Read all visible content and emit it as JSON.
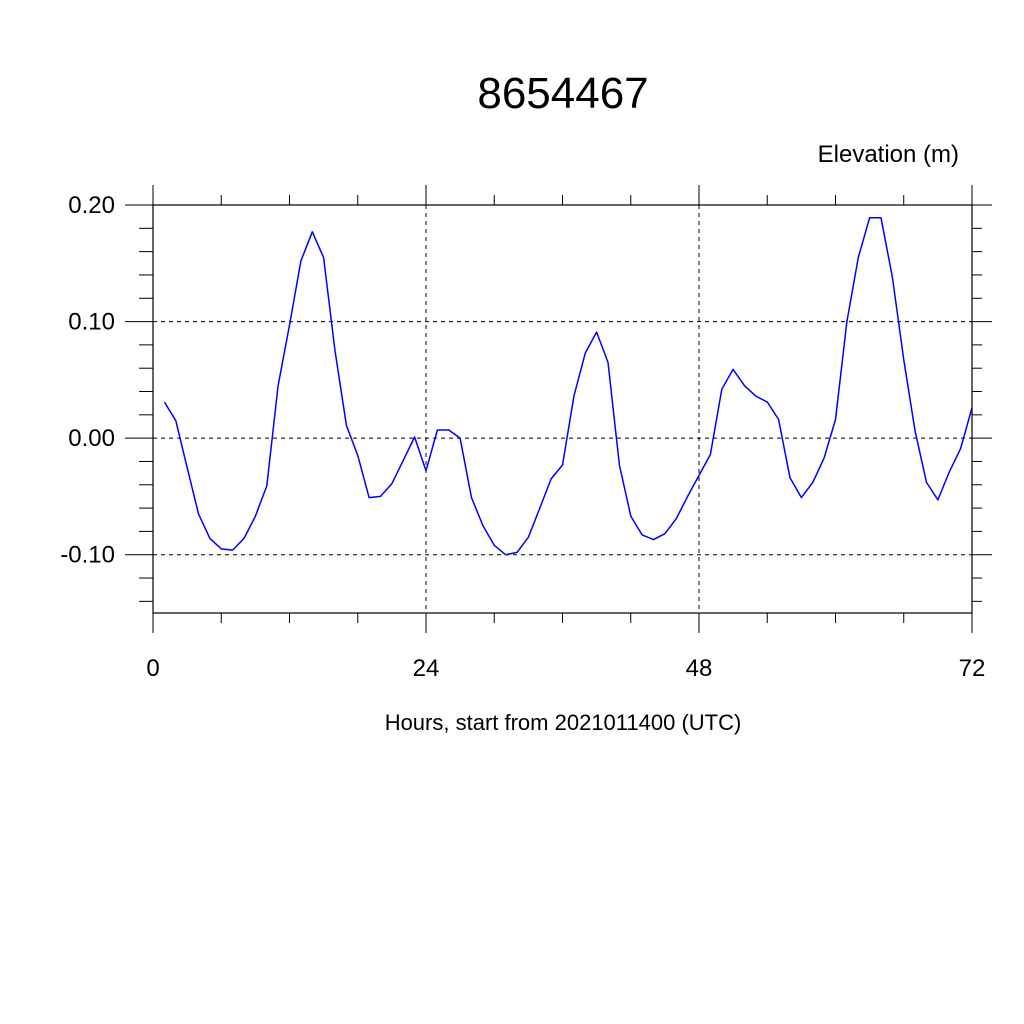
{
  "chart_data": {
    "type": "line",
    "title": "8654467",
    "ylabel": "Elevation (m)",
    "xlabel": "Hours, start from 2021011400 (UTC)",
    "xlim": [
      0,
      72
    ],
    "ylim": [
      -0.15,
      0.2
    ],
    "x_ticks": [
      0,
      24,
      48,
      72
    ],
    "x_tick_labels": [
      "0",
      "24",
      "48",
      "72"
    ],
    "y_ticks": [
      0.2,
      0.1,
      0.0,
      -0.1
    ],
    "y_tick_labels": [
      "0.20",
      "0.10",
      "0.00",
      "-0.10"
    ],
    "grid": true,
    "series": [
      {
        "color": "#0000ff",
        "x": [
          1,
          2,
          3,
          4,
          5,
          6,
          7,
          8,
          9,
          10,
          11,
          12,
          13,
          14,
          15,
          16,
          17,
          18,
          19,
          20,
          21,
          22,
          23,
          24,
          25,
          26,
          27,
          28,
          29,
          30,
          31,
          32,
          33,
          34,
          35,
          36,
          37,
          38,
          39,
          40,
          41,
          42,
          43,
          44,
          45,
          46,
          47,
          48,
          49,
          50,
          51,
          52,
          53,
          54,
          55,
          56,
          57,
          58,
          59,
          60,
          61,
          62,
          63,
          64,
          65,
          66,
          67,
          68,
          69,
          70,
          71,
          72
        ],
        "values": [
          0.031,
          0.015,
          -0.025,
          -0.065,
          -0.086,
          -0.095,
          -0.096,
          -0.086,
          -0.067,
          -0.041,
          0.045,
          0.097,
          0.152,
          0.177,
          0.155,
          0.075,
          0.011,
          -0.015,
          -0.051,
          -0.05,
          -0.039,
          -0.019,
          0.001,
          -0.028,
          0.007,
          0.007,
          0.0,
          -0.051,
          -0.075,
          -0.092,
          -0.1,
          -0.098,
          -0.085,
          -0.06,
          -0.035,
          -0.023,
          0.036,
          0.073,
          0.091,
          0.065,
          -0.023,
          -0.067,
          -0.083,
          -0.087,
          -0.082,
          -0.069,
          -0.05,
          -0.032,
          -0.014,
          0.042,
          0.059,
          0.045,
          0.036,
          0.031,
          0.016,
          -0.034,
          -0.051,
          -0.038,
          -0.017,
          0.016,
          0.1,
          0.155,
          0.189,
          0.189,
          0.138,
          0.067,
          0.006,
          -0.038,
          -0.053,
          -0.029,
          -0.009,
          0.026
        ]
      }
    ]
  }
}
